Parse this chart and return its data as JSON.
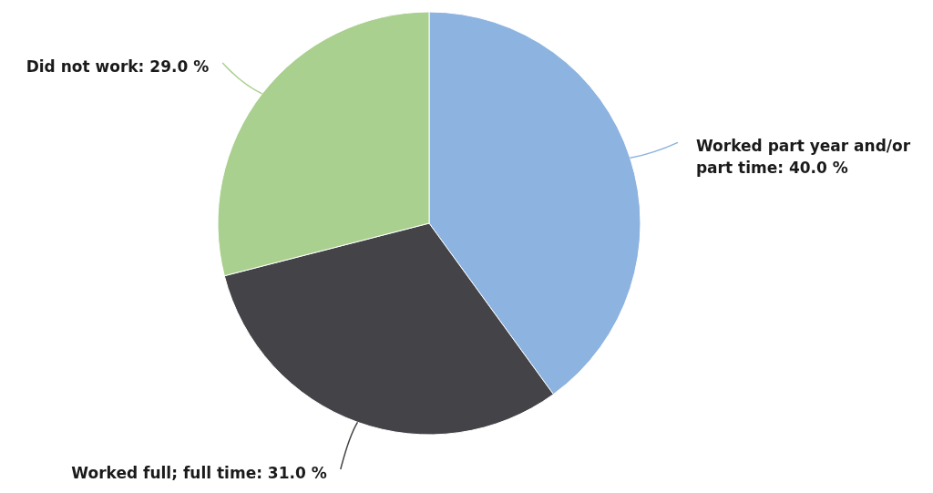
{
  "chart_data": {
    "type": "pie",
    "categories": [
      "Worked part year and/or part time",
      "Worked full; full time",
      "Did not work"
    ],
    "values": [
      40,
      31,
      29
    ],
    "colors": [
      "#8db3e0",
      "#434348",
      "#a9d08e"
    ],
    "value_labels": [
      "40.0 %",
      "31.0 %",
      "29.0 %"
    ]
  }
}
